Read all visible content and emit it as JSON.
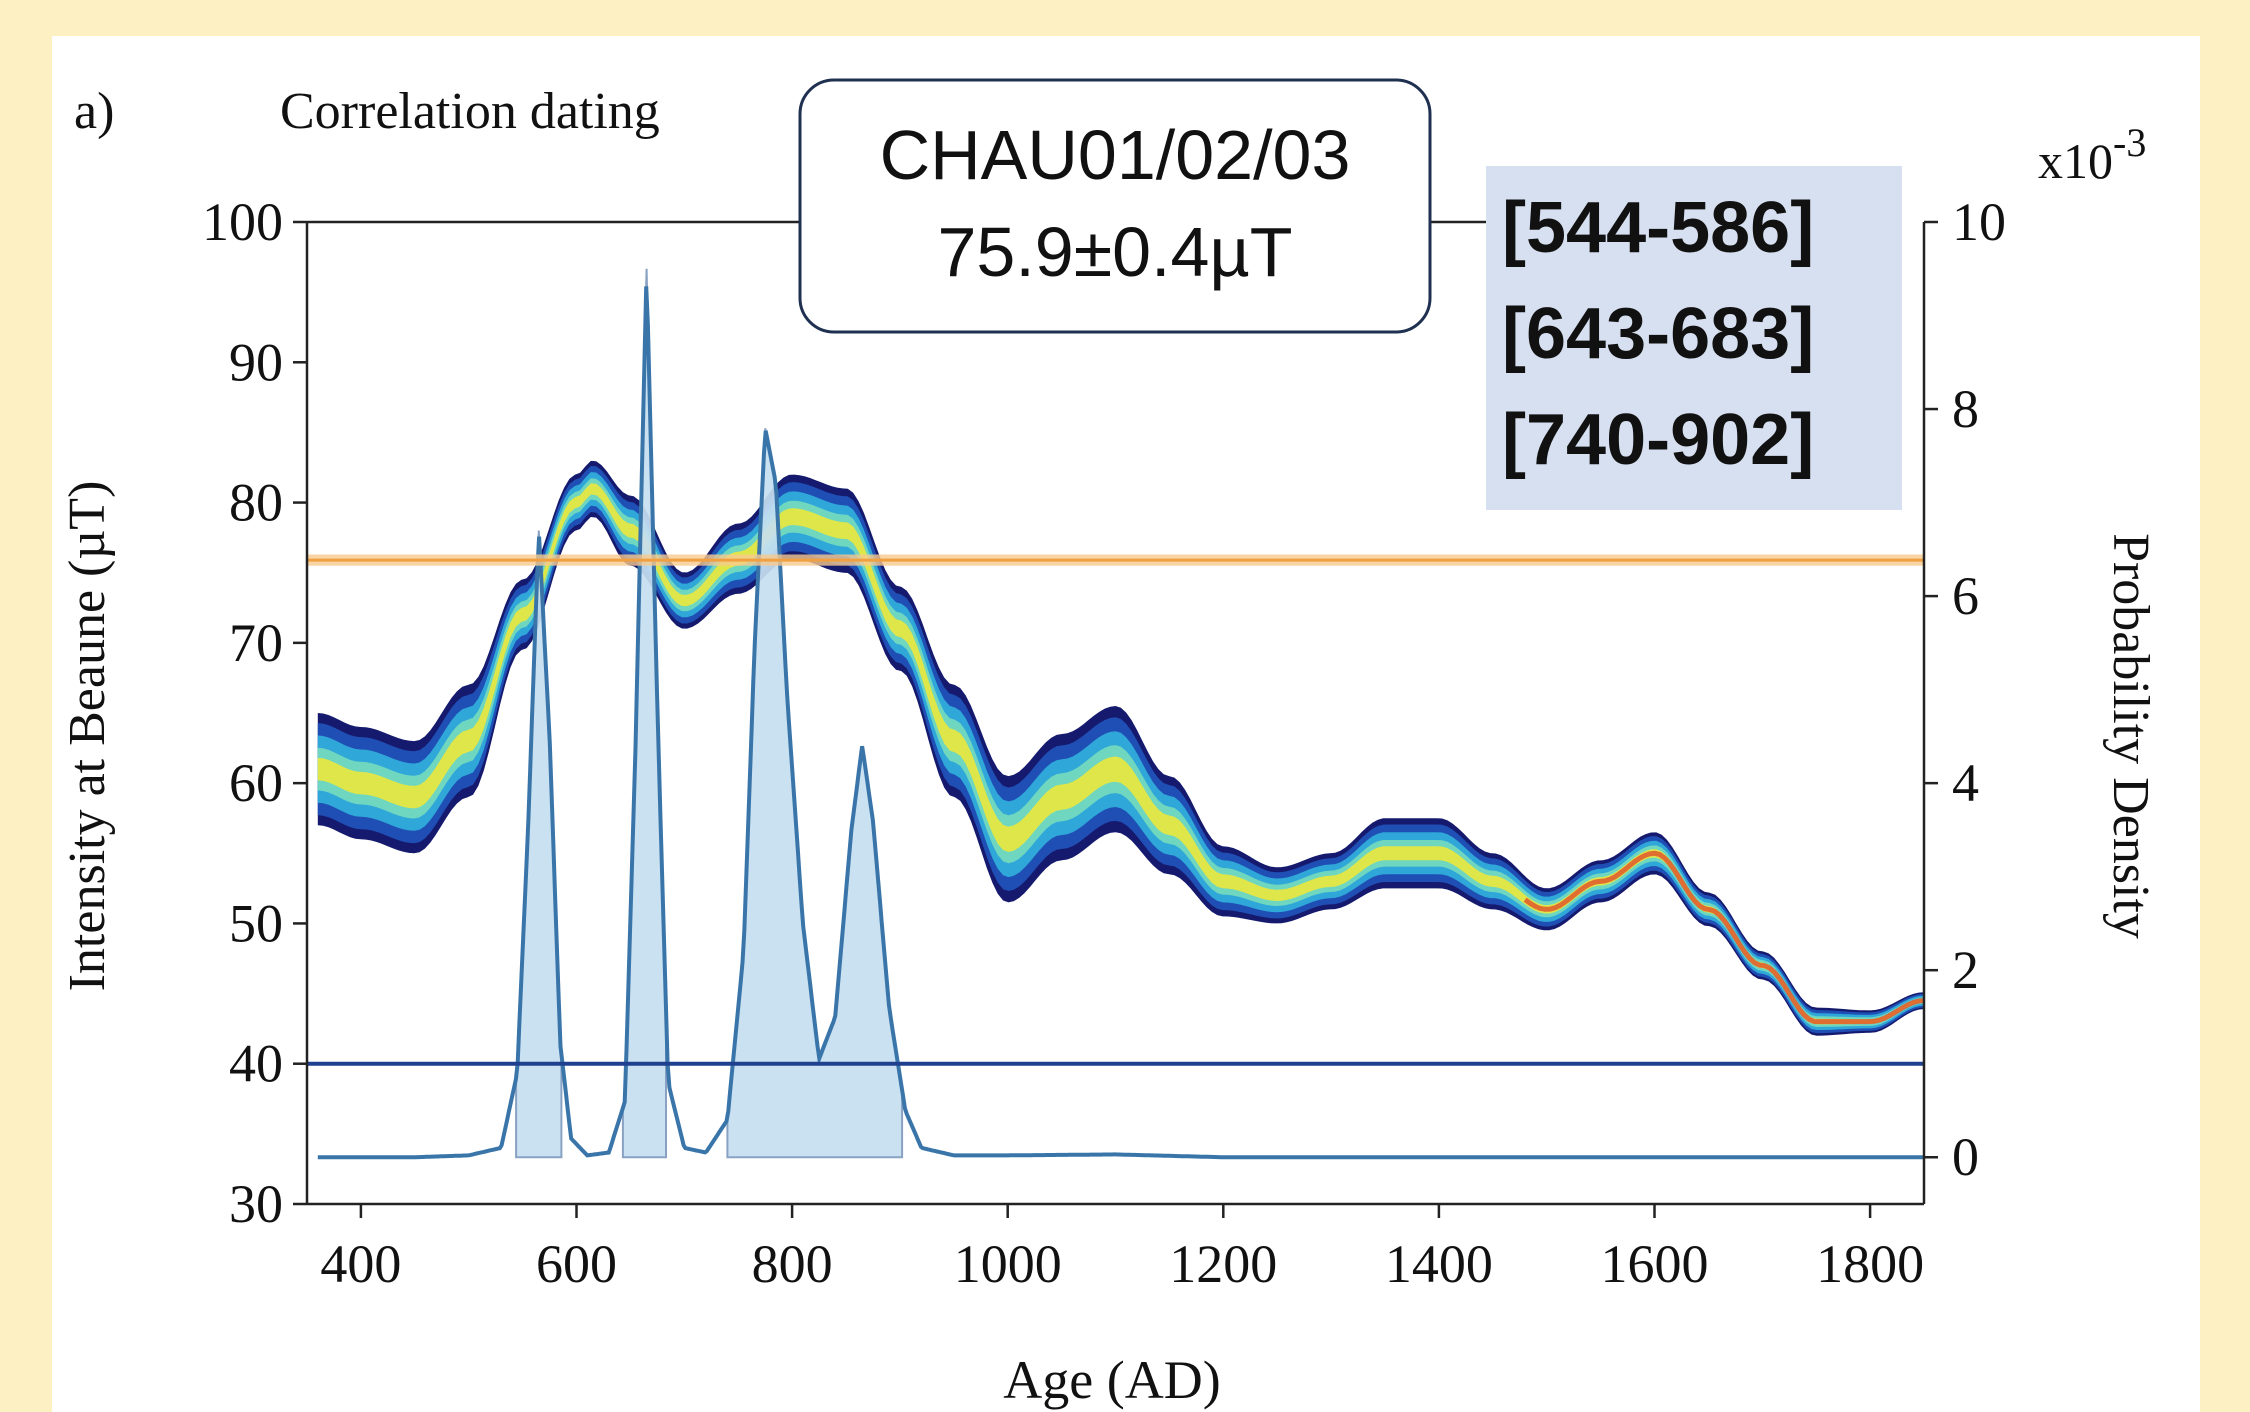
{
  "panel_label": "a)",
  "panel_title": "Correlation dating",
  "sample_box": {
    "line1": "CHAU01/02/03",
    "line2": "75.9±0.4µT"
  },
  "intervals_box": [
    "[544-586]",
    "[643-683]",
    "[740-902]"
  ],
  "colors": {
    "background": "#fdf1c4",
    "intensity_line": "#f0a040",
    "intensity_band": "#f7c98e",
    "density_curve": "#3a75aa",
    "density_fill": "#c6dff0",
    "baseline": "#1f3f8f",
    "intervals_box": "#d7e0f0"
  },
  "chart_data": {
    "type": "line",
    "xlabel": "Age (AD)",
    "ylabel_left": "Intensity at Beaune (µT)",
    "ylabel_right": "Probability Density",
    "right_axis_multiplier": "x10",
    "right_axis_exponent": "-3",
    "xlim": [
      350,
      1850
    ],
    "ylim_left": [
      30,
      100
    ],
    "ylim_right": [
      -0.5,
      10
    ],
    "x_ticks": [
      400,
      600,
      800,
      1000,
      1200,
      1400,
      1600,
      1800
    ],
    "y_ticks_left": [
      30,
      40,
      50,
      60,
      70,
      80,
      90,
      100
    ],
    "y_ticks_right": [
      0,
      2,
      4,
      6,
      8,
      10
    ],
    "measured_intensity": {
      "value": 75.9,
      "error": 0.4
    },
    "lower_reference_line": 40,
    "geomagnetic_curve": {
      "description_colormap": "probability heatmap (blue-cyan-yellow-red)",
      "x": [
        360,
        400,
        450,
        500,
        550,
        600,
        615,
        650,
        700,
        750,
        800,
        850,
        900,
        950,
        1000,
        1050,
        1100,
        1150,
        1200,
        1250,
        1300,
        1350,
        1400,
        1450,
        1500,
        1550,
        1600,
        1650,
        1700,
        1750,
        1800,
        1850
      ],
      "mean": [
        61,
        60,
        59,
        63,
        72,
        80,
        81,
        78,
        73,
        76,
        79,
        78,
        71,
        63,
        56,
        59,
        61,
        57,
        53,
        52,
        53,
        55,
        55,
        53,
        51,
        53,
        55,
        51,
        47,
        43,
        43,
        44.5
      ],
      "half_width": [
        4,
        4,
        4,
        4,
        2.5,
        2,
        2,
        2.5,
        2,
        2.5,
        3,
        3,
        3,
        4,
        4.5,
        4.5,
        4.5,
        3.5,
        2.5,
        2,
        2,
        2.5,
        2.5,
        2,
        1.5,
        1.5,
        1.5,
        1.2,
        1,
        1,
        0.8,
        0.6
      ]
    },
    "probability_density": {
      "x": [
        360,
        400,
        450,
        500,
        530,
        545,
        555,
        565,
        575,
        585,
        595,
        610,
        630,
        645,
        655,
        665,
        675,
        685,
        700,
        720,
        740,
        755,
        765,
        775,
        785,
        795,
        810,
        825,
        840,
        855,
        865,
        875,
        890,
        905,
        920,
        950,
        1000,
        1100,
        1200,
        1400,
        1600,
        1850
      ],
      "y": [
        0,
        0,
        0,
        0.02,
        0.1,
        0.9,
        3.5,
        6.7,
        4.5,
        1.2,
        0.2,
        0.02,
        0.05,
        0.6,
        4.5,
        9.5,
        4.8,
        0.8,
        0.1,
        0.05,
        0.4,
        2.2,
        5.4,
        7.8,
        7.2,
        5.0,
        2.5,
        1.05,
        1.5,
        3.5,
        4.4,
        3.6,
        1.6,
        0.5,
        0.1,
        0.02,
        0.02,
        0.03,
        0,
        0,
        0,
        0
      ],
      "shaded_intervals": [
        [
          544,
          586
        ],
        [
          643,
          683
        ],
        [
          740,
          902
        ]
      ]
    }
  }
}
